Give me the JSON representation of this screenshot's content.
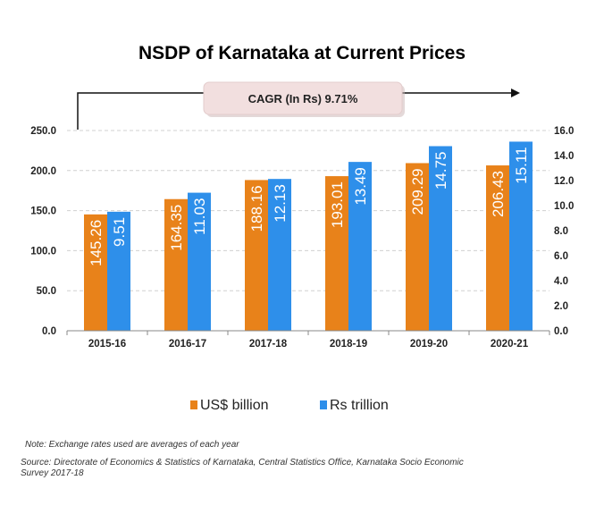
{
  "chart_data": {
    "type": "bar",
    "title": "NSDP of Karnataka at Current Prices",
    "categories": [
      "2015-16",
      "2016-17",
      "2017-18",
      "2018-19",
      "2019-20",
      "2020-21"
    ],
    "series": [
      {
        "name": "US$ billion",
        "axis": "left",
        "color": "#e8821a",
        "values": [
          145.26,
          164.35,
          188.16,
          193.01,
          209.29,
          206.43
        ],
        "labels": [
          "145.26",
          "164.35",
          "188.16",
          "193.01",
          "209.29",
          "206.43"
        ]
      },
      {
        "name": "Rs trillion",
        "axis": "right",
        "color": "#2e8fea",
        "values": [
          9.51,
          11.03,
          12.13,
          13.49,
          14.75,
          15.11
        ],
        "labels": [
          "9.51",
          "11.03",
          "12.13",
          "13.49",
          "14.75",
          "15.11"
        ]
      }
    ],
    "y_left": {
      "range": [
        0,
        250
      ],
      "ticks": [
        "0.0",
        "50.0",
        "100.0",
        "150.0",
        "200.0",
        "250.0"
      ]
    },
    "y_right": {
      "range": [
        0,
        16
      ],
      "ticks": [
        "0.0",
        "2.0",
        "4.0",
        "6.0",
        "8.0",
        "10.0",
        "12.0",
        "14.0",
        "16.0"
      ]
    },
    "grid": "horizontal dashed",
    "legend": "bottom",
    "annotation": "CAGR  (In Rs) 9.71%",
    "title_color": "#2e9e4f"
  },
  "notes": {
    "note": "Note: Exchange rates used are averages of each year",
    "source_line1": "Source: Directorate of Economics & Statistics of Karnataka, Central Statistics Office, Karnataka Socio Economic",
    "source_line2": "Survey 2017-18"
  }
}
